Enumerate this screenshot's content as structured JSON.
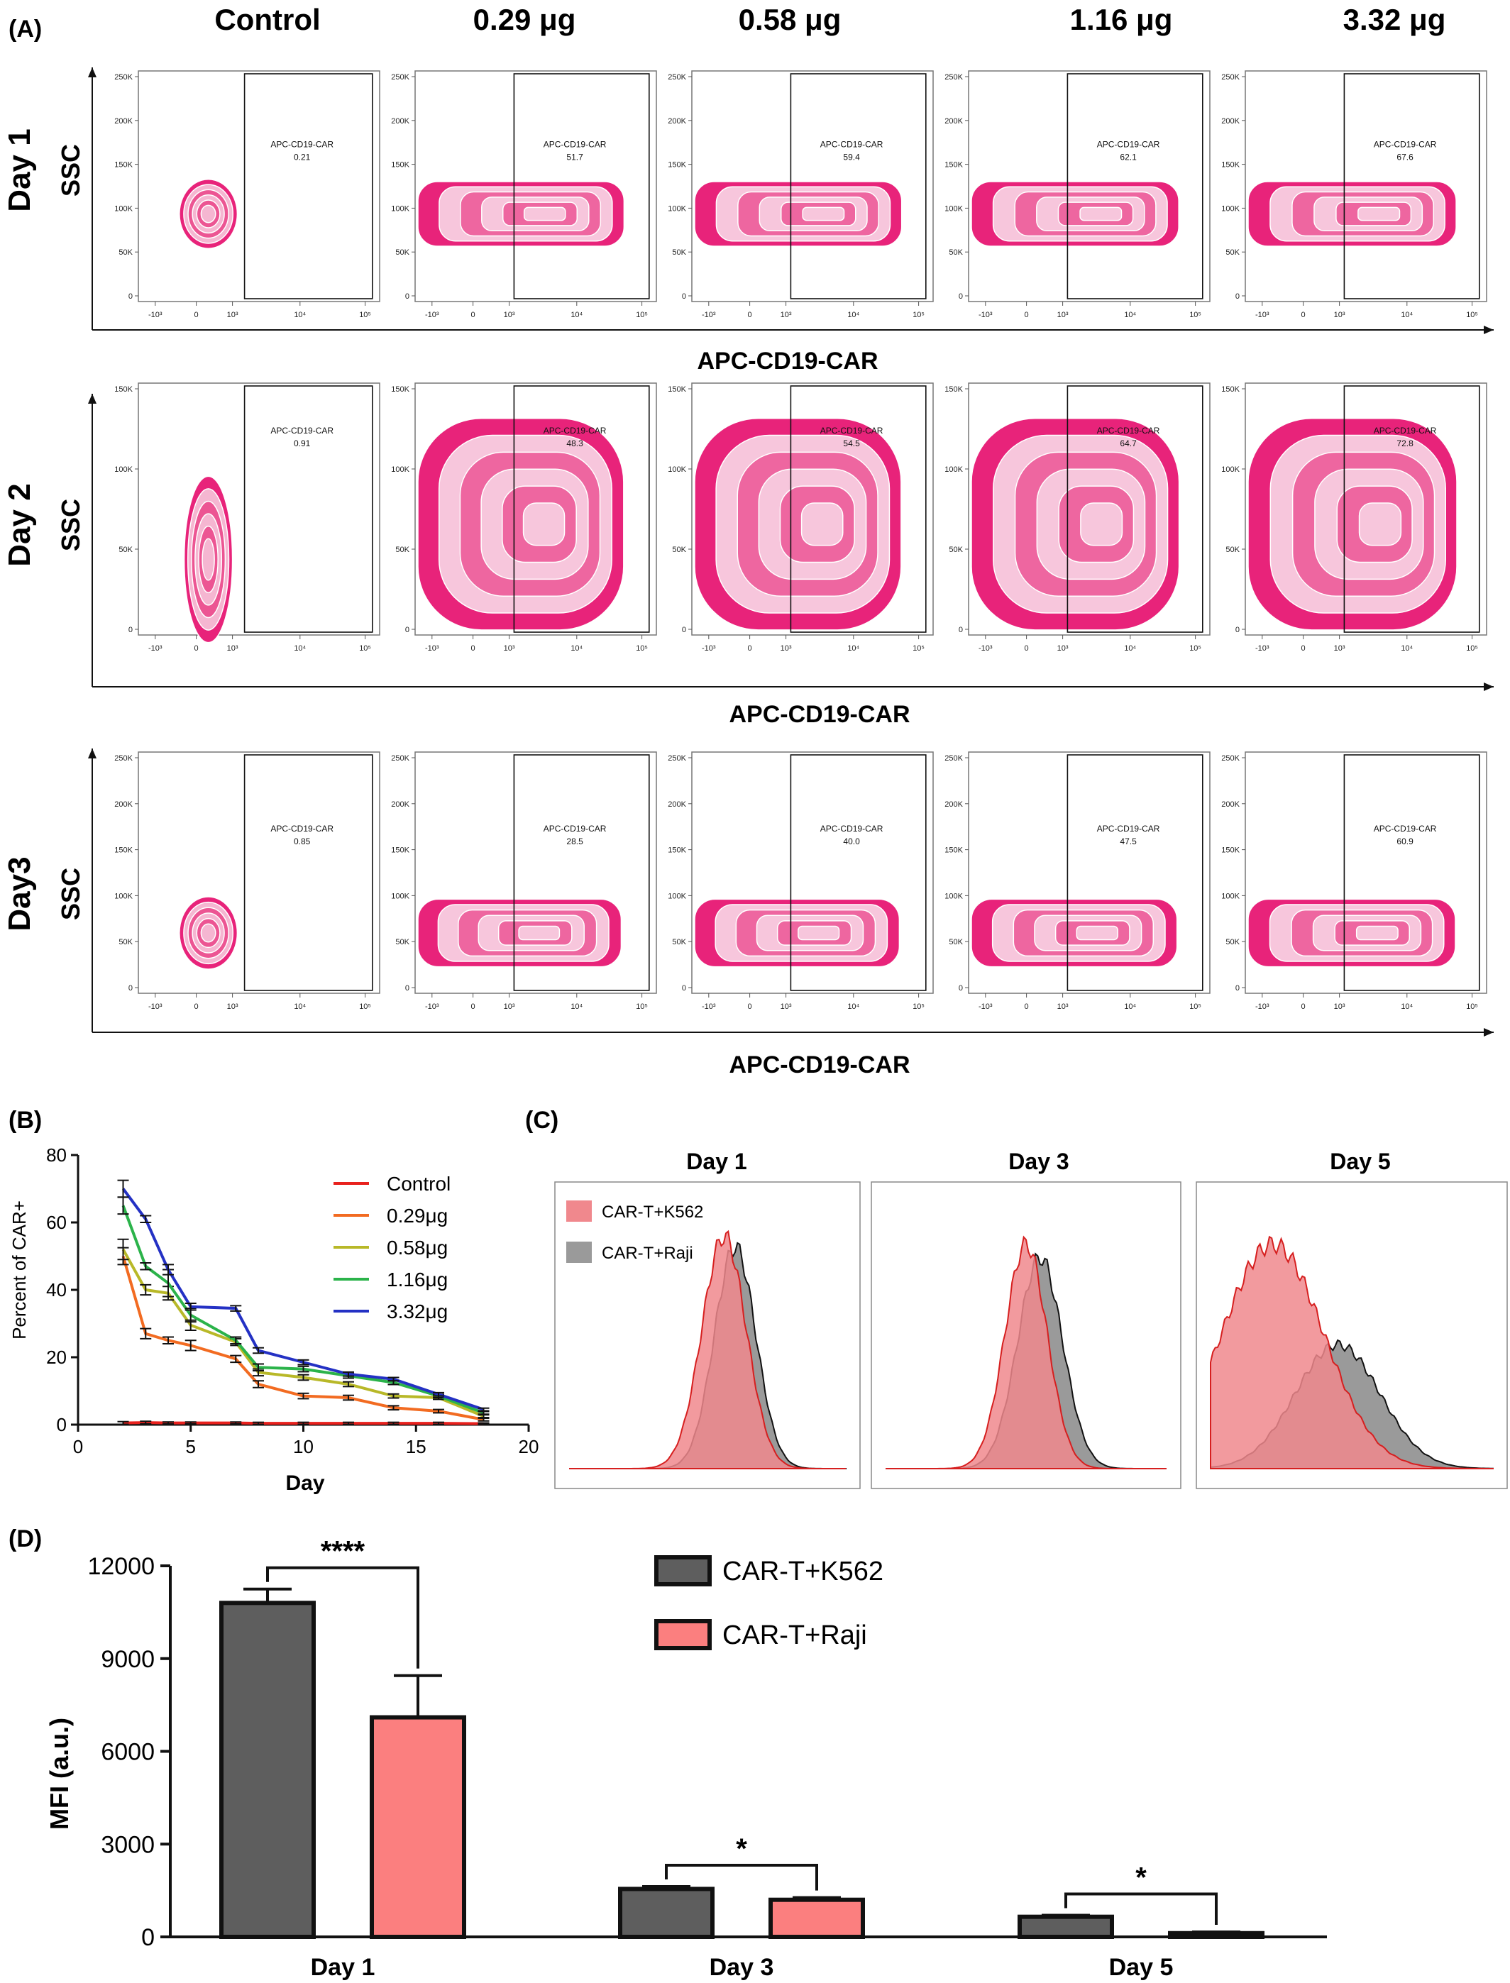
{
  "panel_labels": {
    "a": "(A)",
    "b": "(B)",
    "c": "(C)",
    "d": "(D)"
  },
  "panel_a": {
    "columns": [
      "Control",
      "0.29 μg",
      "0.58 μg",
      "1.16 μg",
      "3.32 μg"
    ],
    "rows": [
      {
        "label": "Day 1",
        "ylabel": "SSC",
        "xlabel": "APC-CD19-CAR",
        "yticks": [
          "250K",
          "200K",
          "150K",
          "100K",
          "50K",
          "0"
        ],
        "gate_label": "APC-CD19-CAR",
        "values": [
          "0.21",
          "51.7",
          "59.4",
          "62.1",
          "67.6"
        ]
      },
      {
        "label": "Day 2",
        "ylabel": "SSC",
        "xlabel": "APC-CD19-CAR",
        "yticks": [
          "150K",
          "100K",
          "50K",
          "0"
        ],
        "gate_label": "APC-CD19-CAR",
        "values": [
          "0.91",
          "48.3",
          "54.5",
          "64.7",
          "72.8"
        ]
      },
      {
        "label": "Day3",
        "ylabel": "SSC",
        "xlabel": "APC-CD19-CAR",
        "yticks": [
          "250K",
          "200K",
          "150K",
          "100K",
          "50K",
          "0"
        ],
        "gate_label": "APC-CD19-CAR",
        "values": [
          "0.85",
          "28.5",
          "40.0",
          "47.5",
          "60.9"
        ]
      }
    ],
    "xticks": [
      "-10³",
      "0",
      "10³",
      "10⁴",
      "10⁵"
    ],
    "contour_color": "#e8237a"
  },
  "chart_data": [
    {
      "type": "line",
      "panel": "(B)",
      "xlabel": "Day",
      "ylabel": "Percent of CAR+",
      "xlim": [
        0,
        20
      ],
      "ylim": [
        0,
        80
      ],
      "xticks": [
        0,
        5,
        10,
        15,
        20
      ],
      "yticks": [
        0,
        20,
        40,
        60,
        80
      ],
      "x": [
        2,
        3,
        4,
        5,
        7,
        8,
        10,
        12,
        14,
        16,
        18
      ],
      "legend_position": "right",
      "series": [
        {
          "name": "Control",
          "color": "#e8211d",
          "values": [
            0.5,
            0.6,
            0.5,
            0.5,
            0.5,
            0.4,
            0.4,
            0.4,
            0.4,
            0.4,
            0.3
          ],
          "errors": [
            0.4,
            0.4,
            0.3,
            0.3,
            0.3,
            0.3,
            0.3,
            0.3,
            0.3,
            0.3,
            0.2
          ]
        },
        {
          "name": "0.29μg",
          "color": "#f26b21",
          "values": [
            50,
            27,
            25,
            23.5,
            19.5,
            12,
            8.5,
            8,
            5,
            4,
            1.5
          ],
          "errors": [
            2.5,
            1.5,
            1,
            1.5,
            1,
            1,
            0.8,
            0.7,
            0.6,
            0.5,
            0.4
          ]
        },
        {
          "name": "0.58μg",
          "color": "#b8b828",
          "values": [
            52,
            40,
            39,
            29.5,
            24.5,
            15.5,
            14,
            12,
            8.5,
            8,
            2.5
          ],
          "errors": [
            3,
            1.5,
            2,
            1.5,
            1,
            1,
            0.8,
            0.7,
            0.6,
            0.5,
            0.4
          ]
        },
        {
          "name": "1.16μg",
          "color": "#2bb34a",
          "values": [
            65,
            47,
            42,
            32.5,
            25,
            17,
            16.5,
            14.5,
            12.5,
            8.5,
            3.5
          ],
          "errors": [
            2.5,
            1,
            4,
            2,
            1,
            1,
            0.8,
            0.7,
            0.6,
            0.5,
            0.4
          ]
        },
        {
          "name": "3.32μg",
          "color": "#2431c4",
          "values": [
            70,
            61,
            46,
            35,
            34.5,
            22,
            18.5,
            15,
            13.5,
            9,
            4.5
          ],
          "errors": [
            2.5,
            1,
            1.5,
            1,
            0.8,
            0.8,
            0.7,
            0.6,
            0.5,
            0.5,
            0.4
          ]
        }
      ]
    },
    {
      "type": "area",
      "panel": "(C)",
      "subplots": [
        "Day 1",
        "Day 3",
        "Day 5"
      ],
      "legend_position": "top-left",
      "series": [
        {
          "name": "CAR-T+K562",
          "fill": "#f0888d",
          "edge": "#d61f1f"
        },
        {
          "name": "CAR-T+Raji",
          "fill": "#9a9a9a",
          "edge": "#111111"
        }
      ],
      "histograms": [
        {
          "k562_center": 0.56,
          "k562_width": 0.08,
          "k562_height": 0.88,
          "raji_center": 0.6,
          "raji_width": 0.075,
          "raji_height": 0.84
        },
        {
          "k562_center": 0.5,
          "k562_width": 0.075,
          "k562_height": 0.85,
          "raji_center": 0.55,
          "raji_width": 0.08,
          "raji_height": 0.8
        },
        {
          "k562_center": 0.22,
          "k562_width": 0.18,
          "k562_height": 0.85,
          "raji_center": 0.45,
          "raji_width": 0.15,
          "raji_height": 0.47
        }
      ]
    },
    {
      "type": "bar",
      "panel": "(D)",
      "ylabel": "MFI (a.u.)",
      "ylim": [
        0,
        12000
      ],
      "yticks": [
        0,
        3000,
        6000,
        9000,
        12000
      ],
      "categories": [
        "Day 1",
        "Day 3",
        "Day 5"
      ],
      "legend_position": "top-right",
      "series": [
        {
          "name": "CAR-T+K562",
          "color": "#5e5e5e",
          "values": [
            10800,
            1550,
            650
          ],
          "errors": [
            450,
            80,
            50
          ]
        },
        {
          "name": "CAR-T+Raji",
          "color": "#fb7f7f",
          "values": [
            7100,
            1200,
            120
          ],
          "errors": [
            1350,
            70,
            40
          ]
        }
      ],
      "significance": [
        "****",
        "*",
        "*"
      ]
    }
  ]
}
